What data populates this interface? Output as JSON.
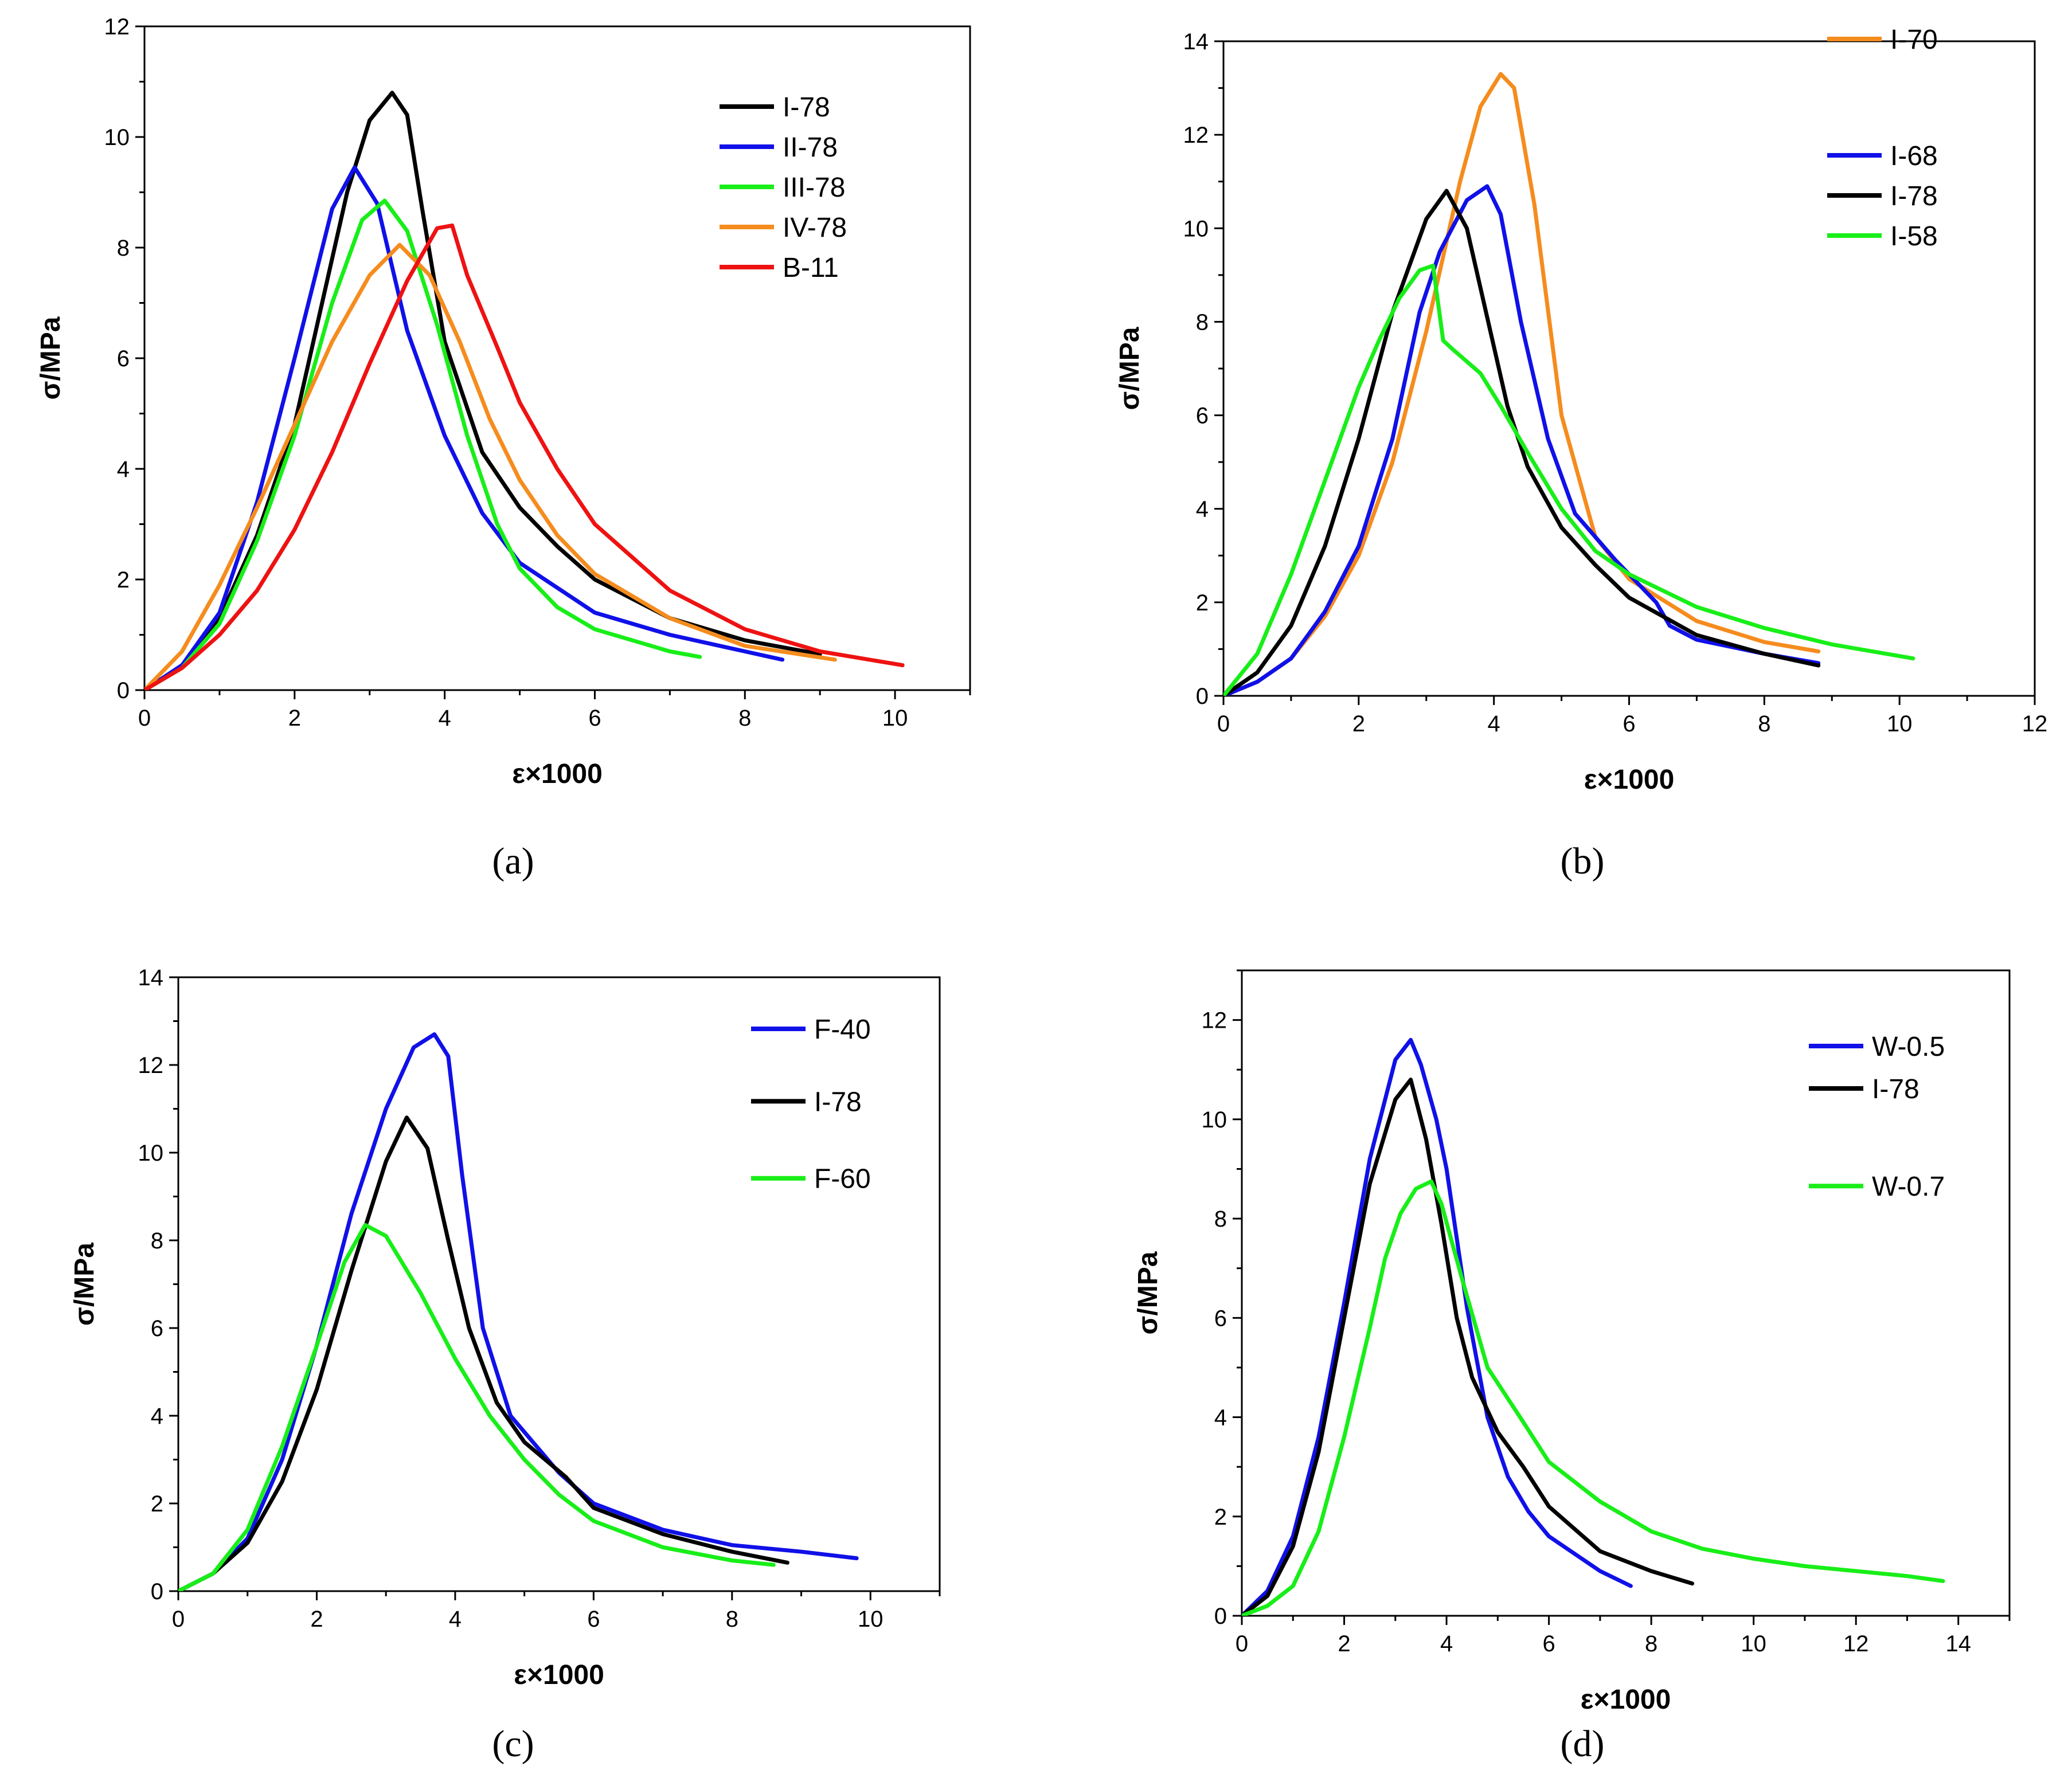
{
  "captions": [
    "(a)",
    "(b)",
    "(c)",
    "(d)"
  ],
  "colors": {
    "black": "#000000",
    "blue": "#1010e8",
    "green": "#18ee18",
    "orange": "#f58c1e",
    "red": "#ee1212"
  },
  "chart_data": [
    {
      "type": "line",
      "xlabel": "ε×1000",
      "ylabel": "σ/MPa",
      "xlim": [
        0,
        11
      ],
      "ylim": [
        0,
        12
      ],
      "xticks": [
        0,
        2,
        4,
        6,
        8,
        10
      ],
      "yticks": [
        0,
        2,
        4,
        6,
        8,
        10,
        12
      ],
      "legend_position": "top-right",
      "series": [
        {
          "name": "I-78",
          "color": "#000000",
          "x": [
            0,
            0.5,
            1.0,
            1.5,
            2.0,
            2.4,
            2.7,
            3.0,
            3.3,
            3.5,
            3.7,
            4.0,
            4.5,
            5.0,
            5.5,
            6.0,
            7.0,
            8.0,
            9.0
          ],
          "y": [
            0,
            0.45,
            1.3,
            2.8,
            4.8,
            7.2,
            9.0,
            10.3,
            10.8,
            10.4,
            8.7,
            6.3,
            4.3,
            3.3,
            2.6,
            2.0,
            1.3,
            0.9,
            0.65
          ]
        },
        {
          "name": "II-78",
          "color": "#1010e8",
          "x": [
            0,
            0.5,
            1.0,
            1.5,
            2.0,
            2.5,
            2.8,
            3.1,
            3.5,
            4.0,
            4.5,
            5.0,
            6.0,
            7.0,
            8.0,
            8.5
          ],
          "y": [
            0,
            0.45,
            1.4,
            3.4,
            6.0,
            8.7,
            9.45,
            8.8,
            6.5,
            4.6,
            3.2,
            2.3,
            1.4,
            1.0,
            0.7,
            0.55
          ]
        },
        {
          "name": "III-78",
          "color": "#18ee18",
          "x": [
            0,
            0.5,
            1.0,
            1.5,
            2.0,
            2.5,
            2.9,
            3.2,
            3.5,
            3.9,
            4.3,
            4.7,
            5.0,
            5.5,
            6.0,
            7.0,
            7.4
          ],
          "y": [
            0,
            0.4,
            1.2,
            2.7,
            4.6,
            7.0,
            8.5,
            8.85,
            8.3,
            6.6,
            4.6,
            3.0,
            2.2,
            1.5,
            1.1,
            0.7,
            0.6
          ]
        },
        {
          "name": "IV-78",
          "color": "#f58c1e",
          "x": [
            0,
            0.5,
            1.0,
            1.5,
            2.0,
            2.5,
            3.0,
            3.4,
            3.8,
            4.2,
            4.6,
            5.0,
            5.5,
            6.0,
            7.0,
            8.0,
            9.2
          ],
          "y": [
            0,
            0.7,
            1.9,
            3.3,
            4.8,
            6.3,
            7.5,
            8.05,
            7.5,
            6.3,
            4.9,
            3.8,
            2.8,
            2.1,
            1.3,
            0.8,
            0.55
          ]
        },
        {
          "name": "B-11",
          "color": "#ee1212",
          "x": [
            0,
            0.5,
            1.0,
            1.5,
            2.0,
            2.5,
            3.0,
            3.5,
            3.9,
            4.1,
            4.3,
            4.7,
            5.0,
            5.5,
            6.0,
            7.0,
            8.0,
            9.0,
            10.1
          ],
          "y": [
            0,
            0.4,
            1.0,
            1.8,
            2.9,
            4.3,
            5.9,
            7.4,
            8.35,
            8.4,
            7.5,
            6.2,
            5.2,
            4.0,
            3.0,
            1.8,
            1.1,
            0.7,
            0.45
          ]
        }
      ]
    },
    {
      "type": "line",
      "xlabel": "ε×1000",
      "ylabel": "σ/MPa",
      "xlim": [
        0,
        12
      ],
      "ylim": [
        0,
        14
      ],
      "xticks": [
        0,
        2,
        4,
        6,
        8,
        10,
        12
      ],
      "yticks": [
        0,
        2,
        4,
        6,
        8,
        10,
        12,
        14
      ],
      "legend_position": "top-right",
      "series": [
        {
          "name": "I-70",
          "color": "#f58c1e",
          "x": [
            0,
            0.5,
            1.0,
            1.5,
            2.0,
            2.5,
            3.0,
            3.5,
            3.8,
            4.1,
            4.3,
            4.6,
            5.0,
            5.5,
            6.0,
            7.0,
            8.0,
            8.8
          ],
          "y": [
            0,
            0.3,
            0.8,
            1.7,
            3.0,
            5.0,
            7.8,
            11.0,
            12.6,
            13.3,
            13.0,
            10.5,
            6.0,
            3.4,
            2.5,
            1.6,
            1.15,
            0.95
          ]
        },
        {
          "name": "I-68",
          "color": "#1010e8",
          "x": [
            0,
            0.5,
            1.0,
            1.5,
            2.0,
            2.5,
            2.9,
            3.2,
            3.6,
            3.9,
            4.1,
            4.4,
            4.8,
            5.2,
            5.8,
            6.4,
            6.6,
            7.0,
            8.0,
            8.8
          ],
          "y": [
            0,
            0.3,
            0.8,
            1.8,
            3.2,
            5.5,
            8.2,
            9.5,
            10.6,
            10.9,
            10.3,
            8.0,
            5.5,
            3.9,
            2.9,
            2.0,
            1.5,
            1.2,
            0.9,
            0.7
          ]
        },
        {
          "name": "I-78",
          "color": "#000000",
          "x": [
            0,
            0.5,
            1.0,
            1.5,
            2.0,
            2.5,
            3.0,
            3.3,
            3.6,
            3.9,
            4.2,
            4.5,
            5.0,
            5.5,
            6.0,
            7.0,
            8.0,
            8.8
          ],
          "y": [
            0,
            0.5,
            1.5,
            3.2,
            5.5,
            8.2,
            10.2,
            10.8,
            10.0,
            8.1,
            6.2,
            4.9,
            3.6,
            2.8,
            2.1,
            1.3,
            0.9,
            0.65
          ]
        },
        {
          "name": "I-58",
          "color": "#18ee18",
          "x": [
            0,
            0.5,
            1.0,
            1.5,
            2.0,
            2.3,
            2.6,
            2.9,
            3.1,
            3.25,
            3.4,
            3.8,
            4.1,
            4.5,
            5.0,
            5.5,
            6.0,
            7.0,
            8.0,
            9.0,
            10.2
          ],
          "y": [
            0,
            0.9,
            2.6,
            4.6,
            6.6,
            7.6,
            8.5,
            9.1,
            9.2,
            7.6,
            7.4,
            6.9,
            6.2,
            5.2,
            4.0,
            3.1,
            2.6,
            1.9,
            1.45,
            1.1,
            0.8
          ]
        }
      ]
    },
    {
      "type": "line",
      "xlabel": "ε×1000",
      "ylabel": "σ/MPa",
      "xlim": [
        0,
        11
      ],
      "ylim": [
        0,
        14
      ],
      "xticks": [
        0,
        2,
        4,
        6,
        8,
        10
      ],
      "yticks": [
        0,
        2,
        4,
        6,
        8,
        10,
        12,
        14
      ],
      "legend_position": "top-right",
      "series": [
        {
          "name": "F-40",
          "color": "#1010e8",
          "x": [
            0,
            0.5,
            1.0,
            1.5,
            2.0,
            2.5,
            3.0,
            3.4,
            3.7,
            3.9,
            4.1,
            4.4,
            4.8,
            5.5,
            6.0,
            7.0,
            8.0,
            9.0,
            9.8
          ],
          "y": [
            0,
            0.4,
            1.2,
            3.0,
            5.6,
            8.6,
            11.0,
            12.4,
            12.7,
            12.2,
            9.5,
            6.0,
            4.0,
            2.7,
            2.0,
            1.4,
            1.05,
            0.9,
            0.75
          ]
        },
        {
          "name": "I-78",
          "color": "#000000",
          "x": [
            0,
            0.5,
            1.0,
            1.5,
            2.0,
            2.5,
            3.0,
            3.3,
            3.6,
            3.9,
            4.2,
            4.6,
            5.0,
            5.6,
            6.0,
            7.0,
            8.0,
            8.8
          ],
          "y": [
            0,
            0.4,
            1.1,
            2.5,
            4.6,
            7.3,
            9.8,
            10.8,
            10.1,
            8.0,
            6.0,
            4.3,
            3.4,
            2.6,
            1.9,
            1.3,
            0.9,
            0.65
          ]
        },
        {
          "name": "F-60",
          "color": "#18ee18",
          "x": [
            0,
            0.5,
            1.0,
            1.5,
            2.0,
            2.4,
            2.7,
            3.0,
            3.5,
            4.0,
            4.5,
            5.0,
            5.5,
            6.0,
            7.0,
            8.0,
            8.6
          ],
          "y": [
            0,
            0.4,
            1.4,
            3.3,
            5.6,
            7.5,
            8.35,
            8.1,
            6.8,
            5.3,
            4.0,
            3.0,
            2.2,
            1.6,
            1.0,
            0.7,
            0.6
          ]
        }
      ]
    },
    {
      "type": "line",
      "xlabel": "ε×1000",
      "ylabel": "σ/MPa",
      "xlim": [
        0,
        15
      ],
      "ylim": [
        0,
        13
      ],
      "xticks": [
        0,
        2,
        4,
        6,
        8,
        10,
        12,
        14
      ],
      "yticks": [
        0,
        2,
        4,
        6,
        8,
        10,
        12
      ],
      "legend_position": "top-right",
      "series": [
        {
          "name": "W-0.5",
          "color": "#1010e8",
          "x": [
            0,
            0.5,
            1.0,
            1.5,
            2.0,
            2.5,
            3.0,
            3.3,
            3.5,
            3.8,
            4.0,
            4.4,
            4.8,
            5.2,
            5.6,
            6.0,
            7.0,
            7.6
          ],
          "y": [
            0,
            0.5,
            1.6,
            3.6,
            6.3,
            9.2,
            11.2,
            11.6,
            11.1,
            10.0,
            9.0,
            6.2,
            4.0,
            2.8,
            2.1,
            1.6,
            0.9,
            0.6
          ]
        },
        {
          "name": "I-78",
          "color": "#000000",
          "x": [
            0,
            0.5,
            1.0,
            1.5,
            2.0,
            2.5,
            3.0,
            3.3,
            3.6,
            3.9,
            4.2,
            4.5,
            5.0,
            5.5,
            6.0,
            7.0,
            8.0,
            8.8
          ],
          "y": [
            0,
            0.4,
            1.4,
            3.3,
            6.0,
            8.7,
            10.4,
            10.8,
            9.6,
            7.9,
            6.0,
            4.8,
            3.7,
            3.0,
            2.2,
            1.3,
            0.9,
            0.65
          ]
        },
        {
          "name": "W-0.7",
          "color": "#18ee18",
          "x": [
            0,
            0.5,
            1.0,
            1.5,
            2.0,
            2.5,
            2.8,
            3.1,
            3.4,
            3.7,
            3.9,
            4.3,
            4.8,
            5.5,
            6.0,
            7.0,
            8.0,
            9.0,
            10.0,
            11.0,
            12.0,
            13.0,
            13.7
          ],
          "y": [
            0,
            0.2,
            0.6,
            1.7,
            3.6,
            5.8,
            7.2,
            8.1,
            8.6,
            8.75,
            8.3,
            6.8,
            5.0,
            3.9,
            3.1,
            2.3,
            1.7,
            1.35,
            1.15,
            1.0,
            0.9,
            0.8,
            0.7
          ]
        }
      ]
    }
  ]
}
